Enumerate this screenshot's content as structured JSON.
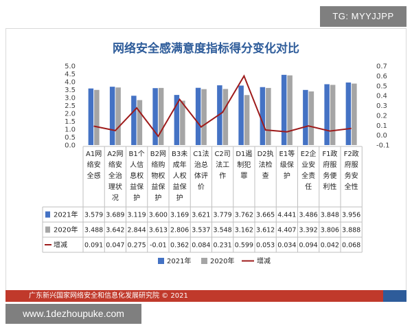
{
  "watermark_top": "TG: MYYJJPP",
  "watermark_bottom": "www.1dezhoupuke.com",
  "footer": "广东新兴国家网络安全和信息化发展研究院 © 2021",
  "colors": {
    "bar_2021": "#4472c4",
    "bar_2020": "#a5a5a5",
    "line": "#9e1b1b",
    "title": "#2e5c9a",
    "footer": "#c0392b"
  },
  "chart_data": {
    "type": "bar",
    "title": "网络安全感满意度指标得分变化对比",
    "categories": [
      [
        "A1网",
        "络安",
        "全感"
      ],
      [
        "A2网",
        "络安",
        "全治",
        "理状",
        "况"
      ],
      [
        "B1个",
        "人信",
        "息权",
        "益保",
        "护"
      ],
      [
        "B2网",
        "络购",
        "物权",
        "益保",
        "护"
      ],
      [
        "B3未",
        "成年",
        "人权",
        "益保",
        "护"
      ],
      [
        "C1法",
        "治总",
        "体评",
        "价"
      ],
      [
        "C2司",
        "法工",
        "作"
      ],
      [
        "D1遏",
        "制犯",
        "罪"
      ],
      [
        "D2执",
        "法检",
        "查"
      ],
      [
        "E1等",
        "级保",
        "护"
      ],
      [
        "E2企",
        "业安",
        "全责",
        "任"
      ],
      [
        "F1政",
        "府服",
        "务便",
        "利性"
      ],
      [
        "F2政",
        "府服",
        "务安",
        "全性"
      ]
    ],
    "series": [
      {
        "name": "2021年",
        "type": "bar",
        "axis": "left",
        "values": [
          3.579,
          3.689,
          3.119,
          3.6,
          3.169,
          3.621,
          3.779,
          3.762,
          3.665,
          4.441,
          3.486,
          3.848,
          3.956
        ]
      },
      {
        "name": "2020年",
        "type": "bar",
        "axis": "left",
        "values": [
          3.488,
          3.642,
          2.844,
          3.613,
          2.806,
          3.537,
          3.548,
          3.162,
          3.612,
          4.407,
          3.392,
          3.806,
          3.888
        ]
      },
      {
        "name": "增减",
        "type": "line",
        "axis": "right",
        "values": [
          0.091,
          0.047,
          0.275,
          -0.01,
          0.362,
          0.084,
          0.231,
          0.599,
          0.053,
          0.034,
          0.094,
          0.042,
          0.068
        ]
      }
    ],
    "left_axis": {
      "min": 0.0,
      "max": 5.0,
      "ticks": [
        "5.0",
        "4.5",
        "4.0",
        "3.5",
        "3.0",
        "2.5",
        "2.0",
        "1.5",
        "1.0",
        "0.5",
        "0.0"
      ]
    },
    "right_axis": {
      "min": -0.1,
      "max": 0.7,
      "ticks": [
        "0.7",
        "0.6",
        "0.5",
        "0.4",
        "0.3",
        "0.2",
        "0.1",
        "0.0",
        "-0.1"
      ]
    },
    "table": {
      "rows": [
        {
          "label": "2021年",
          "cells": [
            "3.579",
            "3.689",
            "3.119",
            "3.600",
            "3.169",
            "3.621",
            "3.779",
            "3.762",
            "3.665",
            "4.441",
            "3.486",
            "3.848",
            "3.956"
          ]
        },
        {
          "label": "2020年",
          "cells": [
            "3.488",
            "3.642",
            "2.844",
            "3.613",
            "2.806",
            "3.537",
            "3.548",
            "3.162",
            "3.612",
            "4.407",
            "3.392",
            "3.806",
            "3.888"
          ]
        },
        {
          "label": "增减",
          "cells": [
            "0.091",
            "0.047",
            "0.275",
            "-0.01",
            "0.362",
            "0.084",
            "0.231",
            "0.599",
            "0.053",
            "0.034",
            "0.094",
            "0.042",
            "0.068"
          ]
        }
      ]
    },
    "legend": [
      "2021年",
      "2020年",
      "增减"
    ],
    "legend_position": "bottom",
    "grid": false
  }
}
